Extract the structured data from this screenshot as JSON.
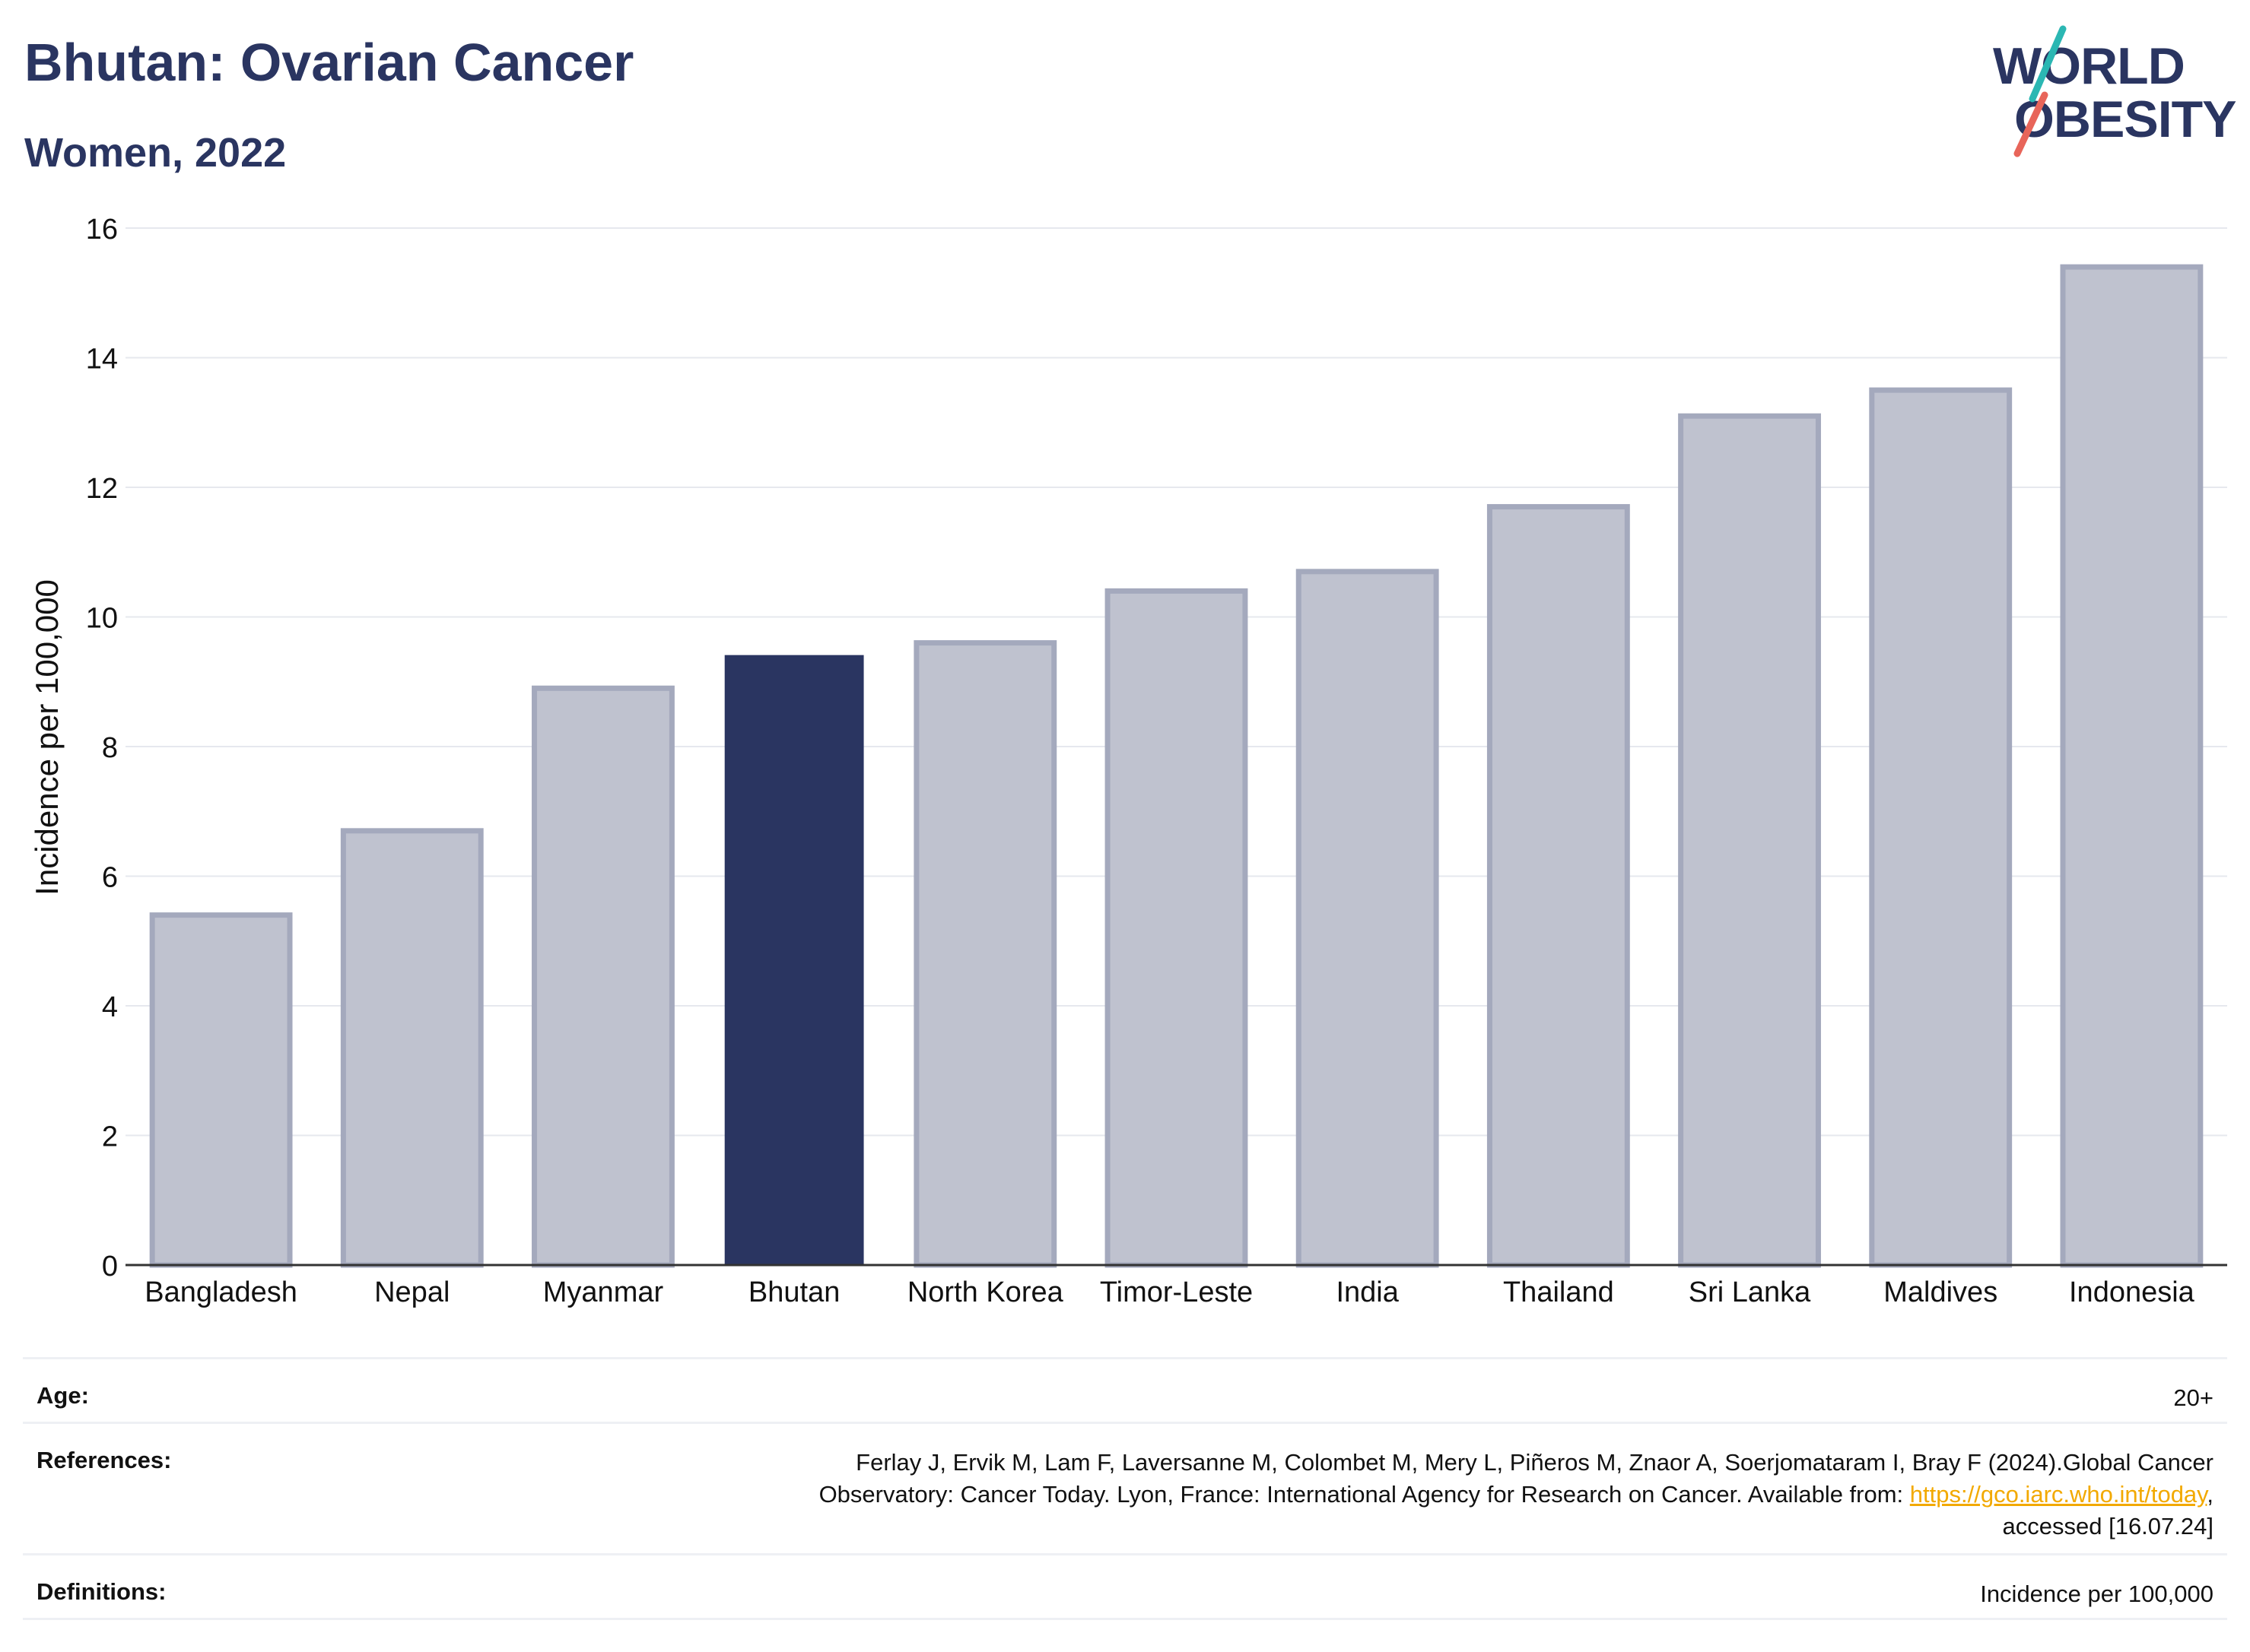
{
  "header": {
    "title": "Bhutan: Ovarian Cancer",
    "subtitle": "Women, 2022",
    "logo_line1": "WORLD",
    "logo_line2": "OBESITY"
  },
  "colors": {
    "highlight": "#2a3561",
    "bar_fill": "#bfc2cf",
    "bar_stroke": "#a4a9bd",
    "logo_teal": "#2bb7b3",
    "logo_coral": "#e8655a",
    "link": "#f2a900"
  },
  "chart_data": {
    "type": "bar",
    "categories": [
      "Bangladesh",
      "Nepal",
      "Myanmar",
      "Bhutan",
      "North Korea",
      "Timor-Leste",
      "India",
      "Thailand",
      "Sri Lanka",
      "Maldives",
      "Indonesia"
    ],
    "values": [
      5.4,
      6.7,
      8.9,
      9.4,
      9.6,
      10.4,
      10.7,
      11.7,
      13.1,
      13.5,
      15.4
    ],
    "highlight": "Bhutan",
    "ylabel": "Incidence per 100,000",
    "ylim": [
      0,
      16
    ],
    "yticks": [
      0,
      2,
      4,
      6,
      8,
      10,
      12,
      14,
      16
    ],
    "grid": true
  },
  "info": {
    "age_label": "Age:",
    "age_value": "20+",
    "references_label": "References:",
    "references_line1": "Ferlay J, Ervik M, Lam F, Laversanne M, Colombet M, Mery L, Piñeros M, Znaor A, Soerjomataram I, Bray F (2024).Global Cancer",
    "references_line2": "Observatory: Cancer Today. Lyon, France: International Agency for Research on Cancer. Available from: ",
    "references_link": "https://gco.iarc.who.int/today",
    "references_line2_end": ",",
    "references_line3": "accessed [16.07.24]",
    "definitions_label": "Definitions:",
    "definitions_value": "Incidence per 100,000"
  }
}
